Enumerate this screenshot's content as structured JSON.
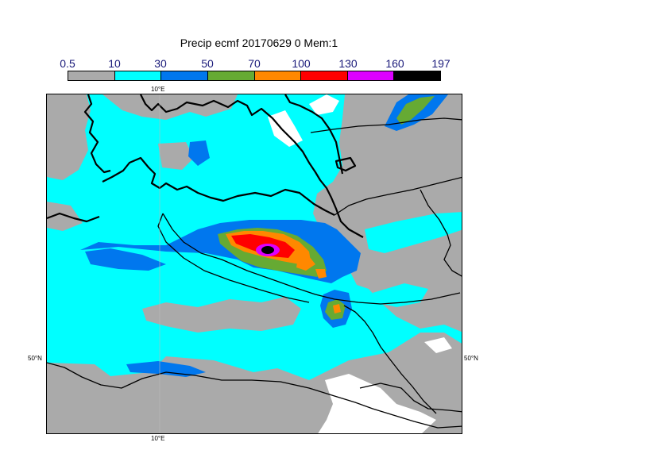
{
  "title": "Precip ecmf 20170629 0 Mem:1",
  "legend": {
    "ticks": [
      "0.5",
      "10",
      "30",
      "50",
      "70",
      "100",
      "130",
      "160",
      "197"
    ],
    "colors": [
      "#aaaaaa",
      "#00ffff",
      "#0077ee",
      "#66aa33",
      "#ff8800",
      "#ff0000",
      "#dd00ff",
      "#000000"
    ]
  },
  "axes": {
    "top_lon": "10°E",
    "bottom_lon": "10°E",
    "left_lat": "50°N",
    "right_lat": "50°N"
  }
}
